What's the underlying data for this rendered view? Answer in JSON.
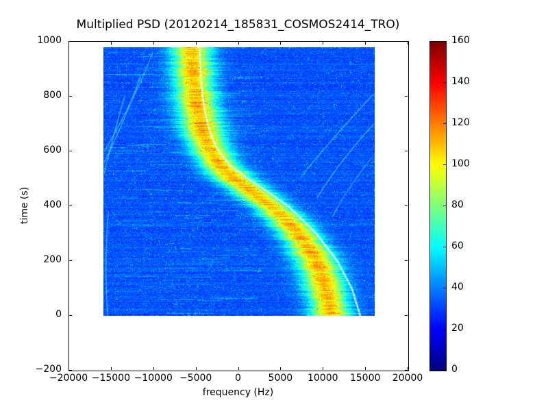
{
  "chart_data": {
    "type": "heatmap",
    "title": "Multiplied PSD (20120214_185831_COSMOS2414_TRO)",
    "xlabel": "frequency (Hz)",
    "ylabel": "time (s)",
    "xlim": [
      -20000,
      20000
    ],
    "ylim": [
      -200,
      1000
    ],
    "xticks": [
      -20000,
      -15000,
      -10000,
      -5000,
      0,
      5000,
      10000,
      15000,
      20000
    ],
    "yticks": [
      -200,
      0,
      200,
      400,
      600,
      800,
      1000
    ],
    "grid": false,
    "image_extent": {
      "freq_hz": [
        -16000,
        16000
      ],
      "time_s": [
        0,
        980
      ]
    },
    "colorbar": {
      "min": 0,
      "max": 160,
      "ticks": [
        0,
        20,
        40,
        60,
        80,
        100,
        120,
        140,
        160
      ],
      "colormap": "jet",
      "stops": [
        [
          0.0,
          "#00007f"
        ],
        [
          0.125,
          "#0000ff"
        ],
        [
          0.375,
          "#00ffff"
        ],
        [
          0.625,
          "#ffff00"
        ],
        [
          0.875,
          "#ff0000"
        ],
        [
          1.0,
          "#7f0000"
        ]
      ]
    },
    "background_psd_value": 33,
    "noise": {
      "amplitude": 15,
      "speckle_fraction": 0.02
    },
    "doppler_band": {
      "peak_value": 108,
      "halfwidth_hz": 2300,
      "center_track": [
        [
          0,
          10800
        ],
        [
          50,
          10600
        ],
        [
          100,
          10200
        ],
        [
          150,
          9750
        ],
        [
          200,
          9100
        ],
        [
          250,
          8200
        ],
        [
          300,
          7000
        ],
        [
          350,
          5600
        ],
        [
          400,
          3800
        ],
        [
          450,
          1600
        ],
        [
          500,
          -600
        ],
        [
          550,
          -2300
        ],
        [
          600,
          -3300
        ],
        [
          650,
          -4000
        ],
        [
          700,
          -4500
        ],
        [
          750,
          -4850
        ],
        [
          800,
          -5100
        ],
        [
          850,
          -5300
        ],
        [
          900,
          -5450
        ],
        [
          950,
          -5550
        ],
        [
          980,
          -5600
        ]
      ]
    },
    "white_trace_color": "#ffffff",
    "white_marker_track": [
      [
        0,
        14300
      ],
      [
        100,
        13300
      ],
      [
        200,
        11600
      ],
      [
        300,
        9100
      ],
      [
        350,
        7500
      ],
      [
        400,
        5800
      ],
      [
        450,
        3500
      ],
      [
        500,
        1100
      ],
      [
        550,
        -1100
      ],
      [
        600,
        -2400
      ],
      [
        650,
        -3200
      ],
      [
        700,
        -3700
      ],
      [
        750,
        -4050
      ],
      [
        800,
        -4300
      ],
      [
        850,
        -4450
      ],
      [
        900,
        -4550
      ],
      [
        950,
        -4620
      ],
      [
        980,
        -4650
      ]
    ],
    "faint_trace_color": "#58d8e8",
    "faint_traces": [
      {
        "points": [
          [
            960,
            -10200
          ],
          [
            790,
            -12600
          ],
          [
            600,
            -15900
          ]
        ]
      },
      {
        "points": [
          [
            880,
            -11600
          ],
          [
            730,
            -13400
          ],
          [
            560,
            -15900
          ]
        ]
      },
      {
        "points": [
          [
            800,
            -13500
          ],
          [
            680,
            -14600
          ],
          [
            520,
            -15900
          ]
        ]
      },
      {
        "points": [
          [
            380,
            -15400
          ],
          [
            190,
            -15700
          ],
          [
            0,
            -15500
          ]
        ]
      },
      {
        "points": [
          [
            810,
            15900
          ],
          [
            640,
            10900
          ],
          [
            505,
            7300
          ]
        ]
      },
      {
        "points": [
          [
            700,
            15900
          ],
          [
            565,
            12200
          ],
          [
            430,
            9200
          ]
        ]
      },
      {
        "points": [
          [
            580,
            15700
          ],
          [
            465,
            13000
          ],
          [
            360,
            11000
          ]
        ]
      }
    ]
  }
}
